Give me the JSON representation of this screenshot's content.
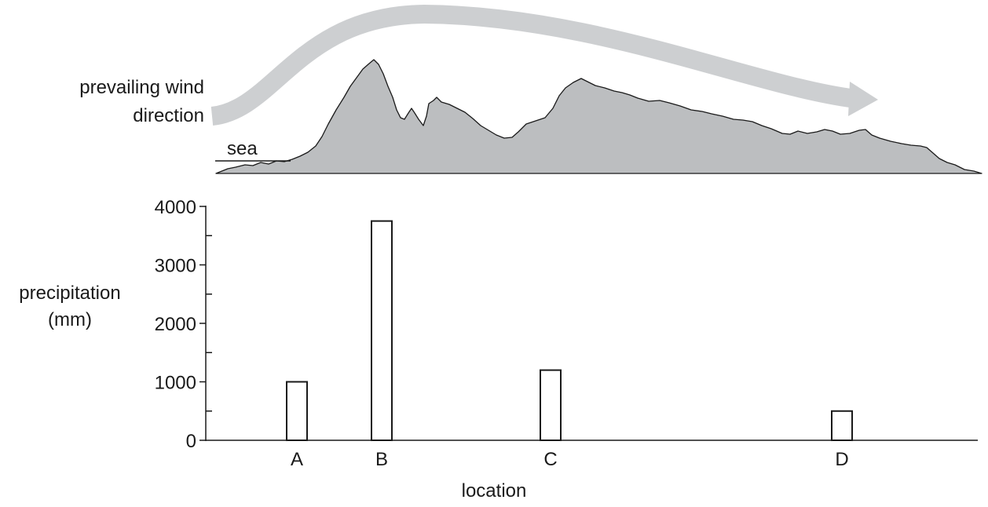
{
  "diagram": {
    "wind_label_line1": "prevailing wind",
    "wind_label_line2": "direction",
    "sea_label": "sea",
    "colors": {
      "terrain_fill": "#bcbec0",
      "wind_arrow": "#cdcfd1",
      "outline": "#1a1a1a"
    }
  },
  "chart_data": {
    "type": "bar",
    "ylabel_line1": "precipitation",
    "ylabel_line2": "(mm)",
    "xlabel": "location",
    "categories": [
      "A",
      "B",
      "C",
      "D"
    ],
    "values": [
      1000,
      3750,
      1200,
      500
    ],
    "ylim": [
      0,
      4000
    ],
    "y_ticks": [
      0,
      1000,
      2000,
      3000,
      4000
    ],
    "y_tick_labels": [
      "0",
      "1000",
      "2000",
      "3000",
      "4000"
    ],
    "grid": false,
    "bar_fill": "#ffffff"
  }
}
